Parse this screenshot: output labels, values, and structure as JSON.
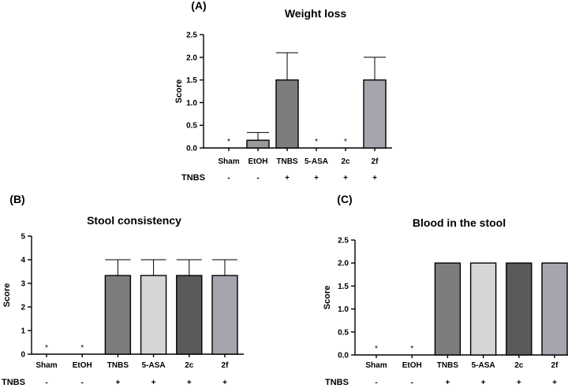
{
  "chart_data": [
    {
      "type": "bar",
      "panel_label": "(A)",
      "title": "Weight loss",
      "ylabel": "Score",
      "ylim": [
        0,
        2.5
      ],
      "yticks": [
        "0.0",
        "0.5",
        "1.0",
        "1.5",
        "2.0",
        "2.5"
      ],
      "categories": [
        "Sham",
        "EtOH",
        "TNBS",
        "5-ASA",
        "2c",
        "2f"
      ],
      "values": [
        0,
        0.17,
        1.5,
        0,
        0,
        1.5
      ],
      "errors": [
        0,
        0.17,
        0.6,
        0,
        0,
        0.5
      ],
      "annotations": [
        "*",
        "",
        "",
        "*",
        "*",
        ""
      ],
      "colors": [
        "#ffffff",
        "#9a9a9a",
        "#7d7d7d",
        "#ffffff",
        "#ffffff",
        "#a5a5ad"
      ],
      "treatment_label": "TNBS",
      "treatment": [
        "-",
        "-",
        "+",
        "+",
        "+",
        "+"
      ]
    },
    {
      "type": "bar",
      "panel_label": "(B)",
      "title": "Stool consistency",
      "ylabel": "Score",
      "ylim": [
        0,
        5
      ],
      "yticks": [
        "0",
        "1",
        "2",
        "3",
        "4",
        "5"
      ],
      "categories": [
        "Sham",
        "EtOH",
        "TNBS",
        "5-ASA",
        "2c",
        "2f"
      ],
      "values": [
        0,
        0,
        3.33,
        3.33,
        3.33,
        3.33
      ],
      "errors": [
        0,
        0,
        0.67,
        0.67,
        0.67,
        0.67
      ],
      "annotations": [
        "*",
        "*",
        "",
        "",
        "",
        ""
      ],
      "colors": [
        "#ffffff",
        "#ffffff",
        "#7d7d7d",
        "#d6d6d6",
        "#5a5a5a",
        "#a5a5ad"
      ],
      "treatment_label": "TNBS",
      "treatment": [
        "-",
        "-",
        "+",
        "+",
        "+",
        "+"
      ]
    },
    {
      "type": "bar",
      "panel_label": "(C)",
      "title": "Blood in the stool",
      "ylabel": "Score",
      "ylim": [
        0,
        2.5
      ],
      "yticks": [
        "0.0",
        "0.5",
        "1.0",
        "1.5",
        "2.0",
        "2.5"
      ],
      "categories": [
        "Sham",
        "EtOH",
        "TNBS",
        "5-ASA",
        "2c",
        "2f"
      ],
      "values": [
        0,
        0,
        2,
        2,
        2,
        2
      ],
      "errors": [
        0,
        0,
        0,
        0,
        0,
        0
      ],
      "annotations": [
        "*",
        "*",
        "",
        "",
        "",
        ""
      ],
      "colors": [
        "#ffffff",
        "#ffffff",
        "#7d7d7d",
        "#d6d6d6",
        "#5a5a5a",
        "#a5a5ad"
      ],
      "treatment_label": "TNBS",
      "treatment": [
        "-",
        "-",
        "+",
        "+",
        "+",
        "+"
      ]
    }
  ]
}
